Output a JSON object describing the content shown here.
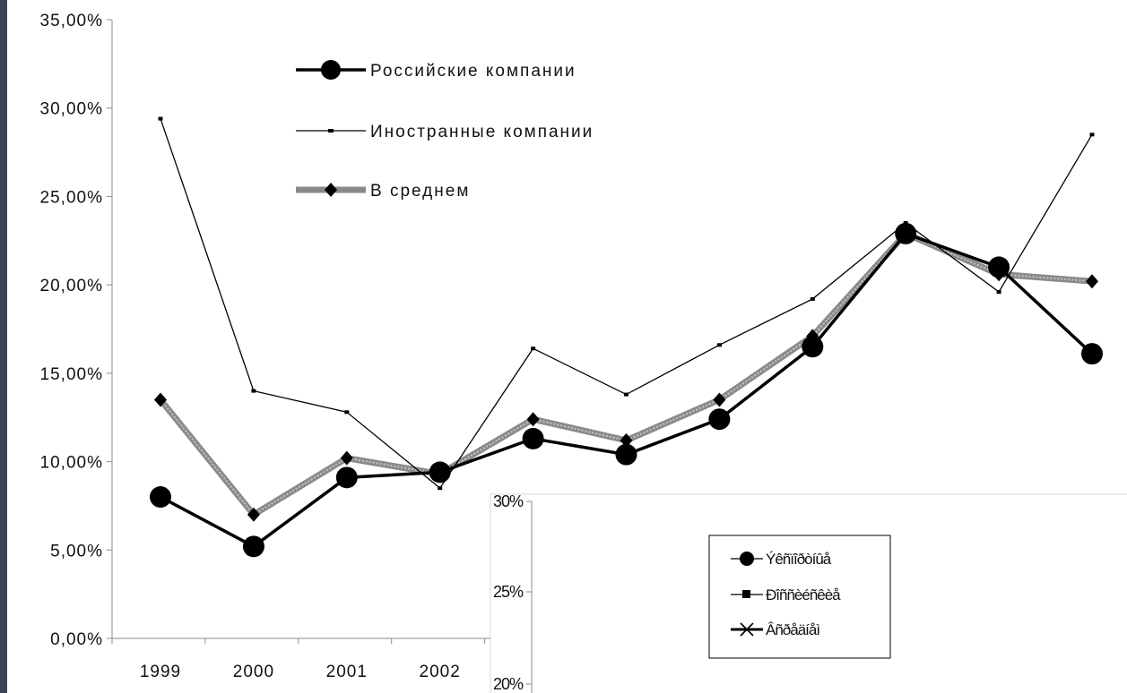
{
  "chart_data": [
    {
      "type": "line",
      "categories": [
        "1999",
        "2000",
        "2001",
        "2002",
        "",
        "",
        "",
        "",
        "",
        "",
        ""
      ],
      "y_tick_labels": [
        "0,00%",
        "5,00%",
        "10,00%",
        "15,00%",
        "20,00%",
        "25,00%",
        "30,00%",
        "35,00%"
      ],
      "ylim": [
        0,
        35
      ],
      "grid": false,
      "legend_position": "top-center",
      "series": [
        {
          "name": "Российские компании",
          "values": [
            8.0,
            5.2,
            9.1,
            9.4,
            11.3,
            10.4,
            12.4,
            16.5,
            22.9,
            21.0,
            16.1
          ],
          "color": "#000000",
          "marker": "circle"
        },
        {
          "name": "Иностранные компании",
          "values": [
            29.4,
            14.0,
            12.8,
            8.5,
            16.4,
            13.8,
            16.6,
            19.2,
            23.5,
            19.6,
            28.5
          ],
          "color": "#000000",
          "marker": "dash"
        },
        {
          "name": "В среднем",
          "values": [
            13.5,
            7.0,
            10.2,
            9.3,
            12.4,
            11.2,
            13.5,
            17.1,
            22.9,
            20.6,
            20.2
          ],
          "color": "#8a8a8a",
          "marker": "diamond"
        }
      ]
    },
    {
      "type": "line",
      "y_tick_labels": [
        "30%",
        "25%",
        "20%"
      ],
      "legend_position": "top-right",
      "series": [
        {
          "name": "Ýêñïîðòíûå",
          "marker": "circle"
        },
        {
          "name": "Ðîññèéñêèå",
          "marker": "square"
        },
        {
          "name": "Âñðåäíåì",
          "marker": "x"
        }
      ]
    }
  ]
}
